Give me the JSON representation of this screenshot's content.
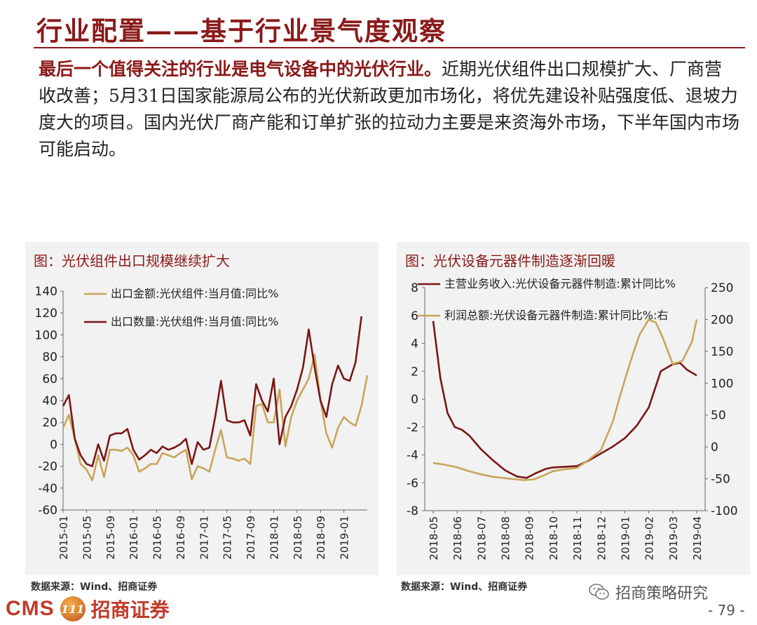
{
  "page": {
    "title": "行业配置——基于行业景气度观察",
    "intro_bold": "最后一个值得关注的行业是电气设备中的光伏行业。",
    "intro_rest": "近期光伏组件出口规模扩大、厂商营收改善；5月31日国家能源局公布的光伏新政更加市场化，将优先建设补贴强度低、退坡力度大的项目。国内光伏厂商产能和订单扩张的拉动力主要是来资海外市场，下半年国内市场可能启动。",
    "page_number": "- 79 -",
    "wechat_label": "招商策略研究",
    "logo_text": "CMS",
    "logo_badge": "111",
    "logo_cn": "招商证券"
  },
  "colors": {
    "accent": "#8b1a1a",
    "series_gold": "#c9a55a",
    "series_maroon": "#7a1616",
    "panel_bg": "#f2f2f2"
  },
  "chart_data": [
    {
      "type": "line",
      "title": "图：光伏组件出口规模继续扩大",
      "source": "数据来源：Wind、招商证券",
      "x_ticks": [
        "2015-01",
        "2015-05",
        "2015-09",
        "2016-01",
        "2016-05",
        "2016-09",
        "2017-01",
        "2017-05",
        "2017-09",
        "2018-01",
        "2018-05",
        "2018-09",
        "2019-01"
      ],
      "ylim": [
        -60,
        140
      ],
      "yticks": [
        -60,
        -40,
        -20,
        0,
        20,
        40,
        60,
        80,
        100,
        120,
        140
      ],
      "legend_position": "top-left",
      "series": [
        {
          "name": "出口金额:光伏组件:当月值:同比%",
          "color": "#c9a55a",
          "values": [
            15,
            27,
            5,
            -18,
            -23,
            -33,
            -10,
            -30,
            -5,
            -5,
            -6,
            -3,
            -10,
            -25,
            -22,
            -18,
            -18,
            -8,
            -10,
            -12,
            -8,
            -5,
            -32,
            -20,
            -22,
            -25,
            -5,
            13,
            -12,
            -13,
            -15,
            -13,
            -18,
            35,
            37,
            20,
            20,
            50,
            -2,
            25,
            40,
            50,
            60,
            82,
            40,
            10,
            -3,
            15,
            25,
            20,
            17,
            35,
            63
          ]
        },
        {
          "name": "出口数量:光伏组件:当月值:同比%",
          "color": "#7a1616",
          "values": [
            35,
            45,
            5,
            -10,
            -18,
            -20,
            0,
            -15,
            8,
            10,
            10,
            14,
            -5,
            -14,
            -10,
            -5,
            -8,
            -2,
            -5,
            -3,
            0,
            5,
            -18,
            2,
            -5,
            -3,
            25,
            58,
            22,
            20,
            20,
            22,
            8,
            55,
            40,
            30,
            60,
            0,
            25,
            35,
            50,
            70,
            105,
            70,
            40,
            25,
            55,
            72,
            60,
            58,
            75,
            117
          ]
        }
      ]
    },
    {
      "type": "line",
      "title": "图：光伏设备元器件制造逐渐回暖",
      "source": "数据来源：Wind、招商证券",
      "x_ticks": [
        "2018-05",
        "2018-06",
        "2018-07",
        "2018-08",
        "2018-09",
        "2018-10",
        "2018-11",
        "2018-12",
        "2019-01",
        "2019-02",
        "2019-03",
        "2019-04"
      ],
      "ylim_left": [
        -8,
        8
      ],
      "yticks_left": [
        -8,
        -6,
        -4,
        -2,
        0,
        2,
        4,
        6,
        8
      ],
      "ylim_right": [
        -100,
        250
      ],
      "yticks_right": [
        -100,
        -50,
        0,
        50,
        100,
        150,
        200,
        250
      ],
      "legend_position": "top",
      "series": [
        {
          "name": "主营业务收入:光伏设备元器件制造:累计同比%",
          "axis": "left",
          "color": "#7a1616",
          "x": [
            0,
            0.3,
            0.6,
            0.9,
            1.2,
            1.5,
            2,
            2.5,
            3,
            3.5,
            3.9,
            4.3,
            4.7,
            5,
            5.5,
            6,
            6.5,
            7,
            7.5,
            8,
            8.5,
            9,
            9.5,
            10,
            10.3,
            10.6,
            11
          ],
          "values": [
            5.6,
            1.5,
            -1,
            -2,
            -2.2,
            -2.6,
            -3.6,
            -4.4,
            -5.1,
            -5.55,
            -5.65,
            -5.3,
            -5,
            -4.9,
            -4.85,
            -4.8,
            -4.4,
            -3.9,
            -3.4,
            -2.8,
            -1.9,
            -0.6,
            2,
            2.5,
            2.6,
            2.1,
            1.7
          ]
        },
        {
          "name": "利润总额:光伏设备元器件制造:累计同比%:右",
          "axis": "right",
          "color": "#c9a55a",
          "x": [
            0,
            0.5,
            1,
            1.5,
            2,
            2.5,
            3,
            3.5,
            3.8,
            4.2,
            4.6,
            5,
            5.5,
            6,
            6.5,
            7,
            7.5,
            7.8,
            8.2,
            8.6,
            9,
            9.3,
            9.6,
            10,
            10.4,
            10.8,
            11
          ],
          "values": [
            -25,
            -28,
            -32,
            -38,
            -43,
            -47,
            -49,
            -51,
            -52,
            -51,
            -45,
            -38,
            -35,
            -33,
            -20,
            -5,
            40,
            80,
            130,
            175,
            200,
            195,
            170,
            130,
            135,
            165,
            200
          ]
        }
      ]
    }
  ]
}
